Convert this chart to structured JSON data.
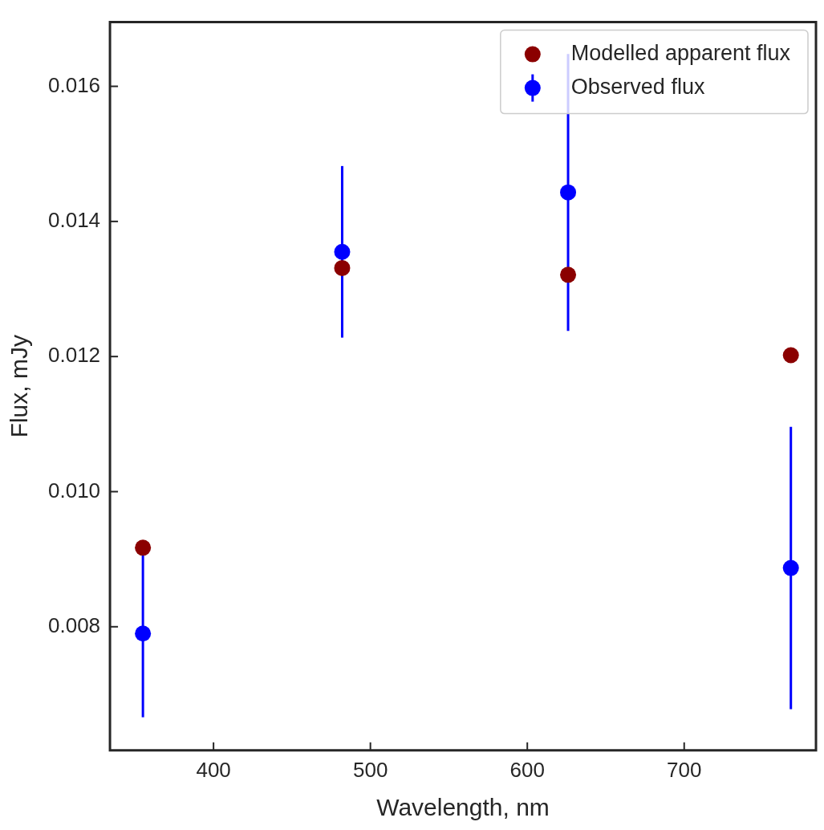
{
  "chart_data": {
    "type": "scatter",
    "xlabel": "Wavelength, nm",
    "ylabel": "Flux, mJy",
    "x": [
      355,
      482,
      626,
      768
    ],
    "series": [
      {
        "name": "Modelled apparent flux",
        "color": "#8b0000",
        "values": [
          0.00917,
          0.01331,
          0.01321,
          0.01202
        ]
      },
      {
        "name": "Observed flux",
        "color": "#0000ff",
        "values": [
          0.0079,
          0.01355,
          0.01443,
          0.00887
        ],
        "errors": [
          0.00124,
          0.00127,
          0.00205,
          0.00209
        ]
      }
    ],
    "xlim": [
      334,
      784
    ],
    "ylim": [
      0.00617,
      0.01695
    ],
    "xticks": [
      400,
      500,
      600,
      700
    ],
    "yticks": [
      0.008,
      {
        "value": 0.01,
        "label": "0.010"
      },
      0.012,
      0.014,
      0.016
    ],
    "marker": "circle",
    "legend": "top right",
    "grid": false
  }
}
